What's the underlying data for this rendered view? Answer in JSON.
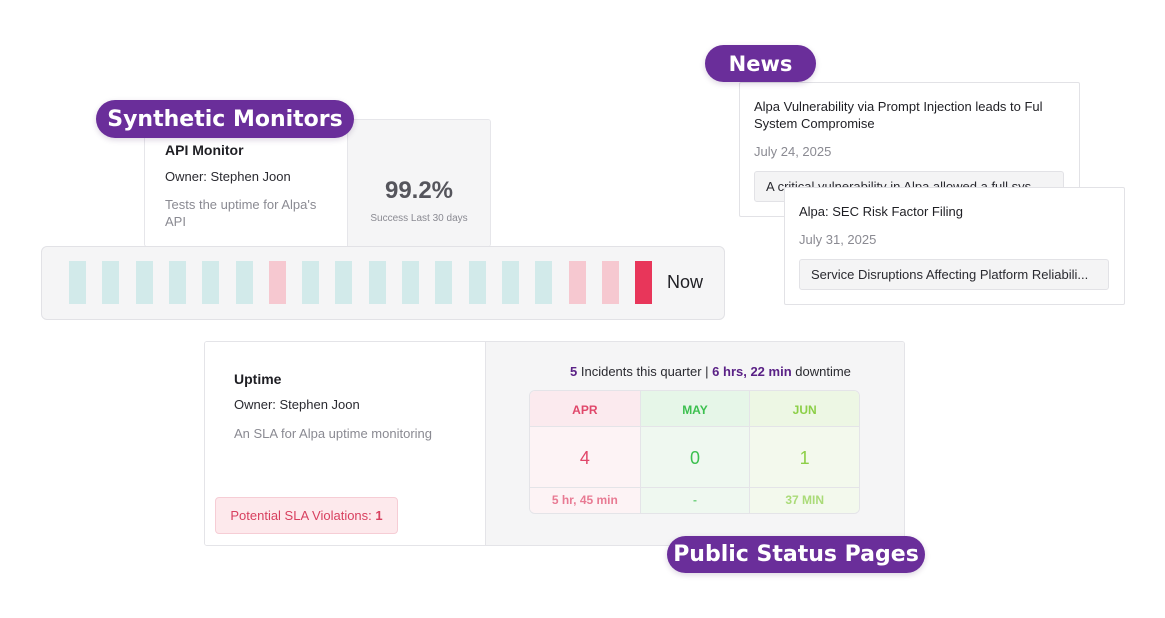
{
  "pills": {
    "news": "News",
    "synthetic": "Synthetic Monitors",
    "status_pages": "Public Status Pages"
  },
  "monitor": {
    "title": "API Monitor",
    "owner": "Owner: Stephen Joon",
    "description": "Tests the uptime for Alpa's API",
    "percent": "99.2%",
    "percent_caption": "Success Last 30 days"
  },
  "uptime_bars": {
    "statuses": [
      "ok",
      "ok",
      "ok",
      "ok",
      "ok",
      "ok",
      "warn",
      "ok",
      "ok",
      "ok",
      "ok",
      "ok",
      "ok",
      "ok",
      "ok",
      "warn",
      "warn",
      "down"
    ],
    "now_label": "Now",
    "colors": {
      "ok": "#d2eaea",
      "warn": "#f6c8d0",
      "down": "#e8365a"
    }
  },
  "news": [
    {
      "title": "Alpa Vulnerability via Prompt Injection leads to Ful System Compromise",
      "date": "July 24, 2025",
      "snippet": "A critical vulnerability in Alpa allowed a full sys..."
    },
    {
      "title": "Alpa: SEC Risk Factor Filing",
      "date": "July 31, 2025",
      "snippet": "Service Disruptions Affecting Platform Reliabili..."
    }
  ],
  "sla": {
    "title": "Uptime",
    "owner": "Owner: Stephen Joon",
    "description": "An SLA for Alpa uptime monitoring",
    "violations_label": "Potential SLA Violations:",
    "violations_count": "1",
    "incidents_count": "5",
    "incidents_text": "Incidents this quarter |",
    "downtime_value": "6 hrs, 22 min",
    "downtime_text": "downtime",
    "months": [
      {
        "name": "APR",
        "count": "4",
        "duration": "5 hr, 45 min",
        "accent": "#e0476a",
        "head_bg": "#fbeaee",
        "body_bg": "#fdf3f5"
      },
      {
        "name": "MAY",
        "count": "0",
        "duration": "-",
        "accent": "#3cc04f",
        "head_bg": "#e6f6e8",
        "body_bg": "#eff8f0"
      },
      {
        "name": "JUN",
        "count": "1",
        "duration": "37 MIN",
        "accent": "#8ccf47",
        "head_bg": "#edf7e4",
        "body_bg": "#f3f9ed"
      }
    ]
  }
}
